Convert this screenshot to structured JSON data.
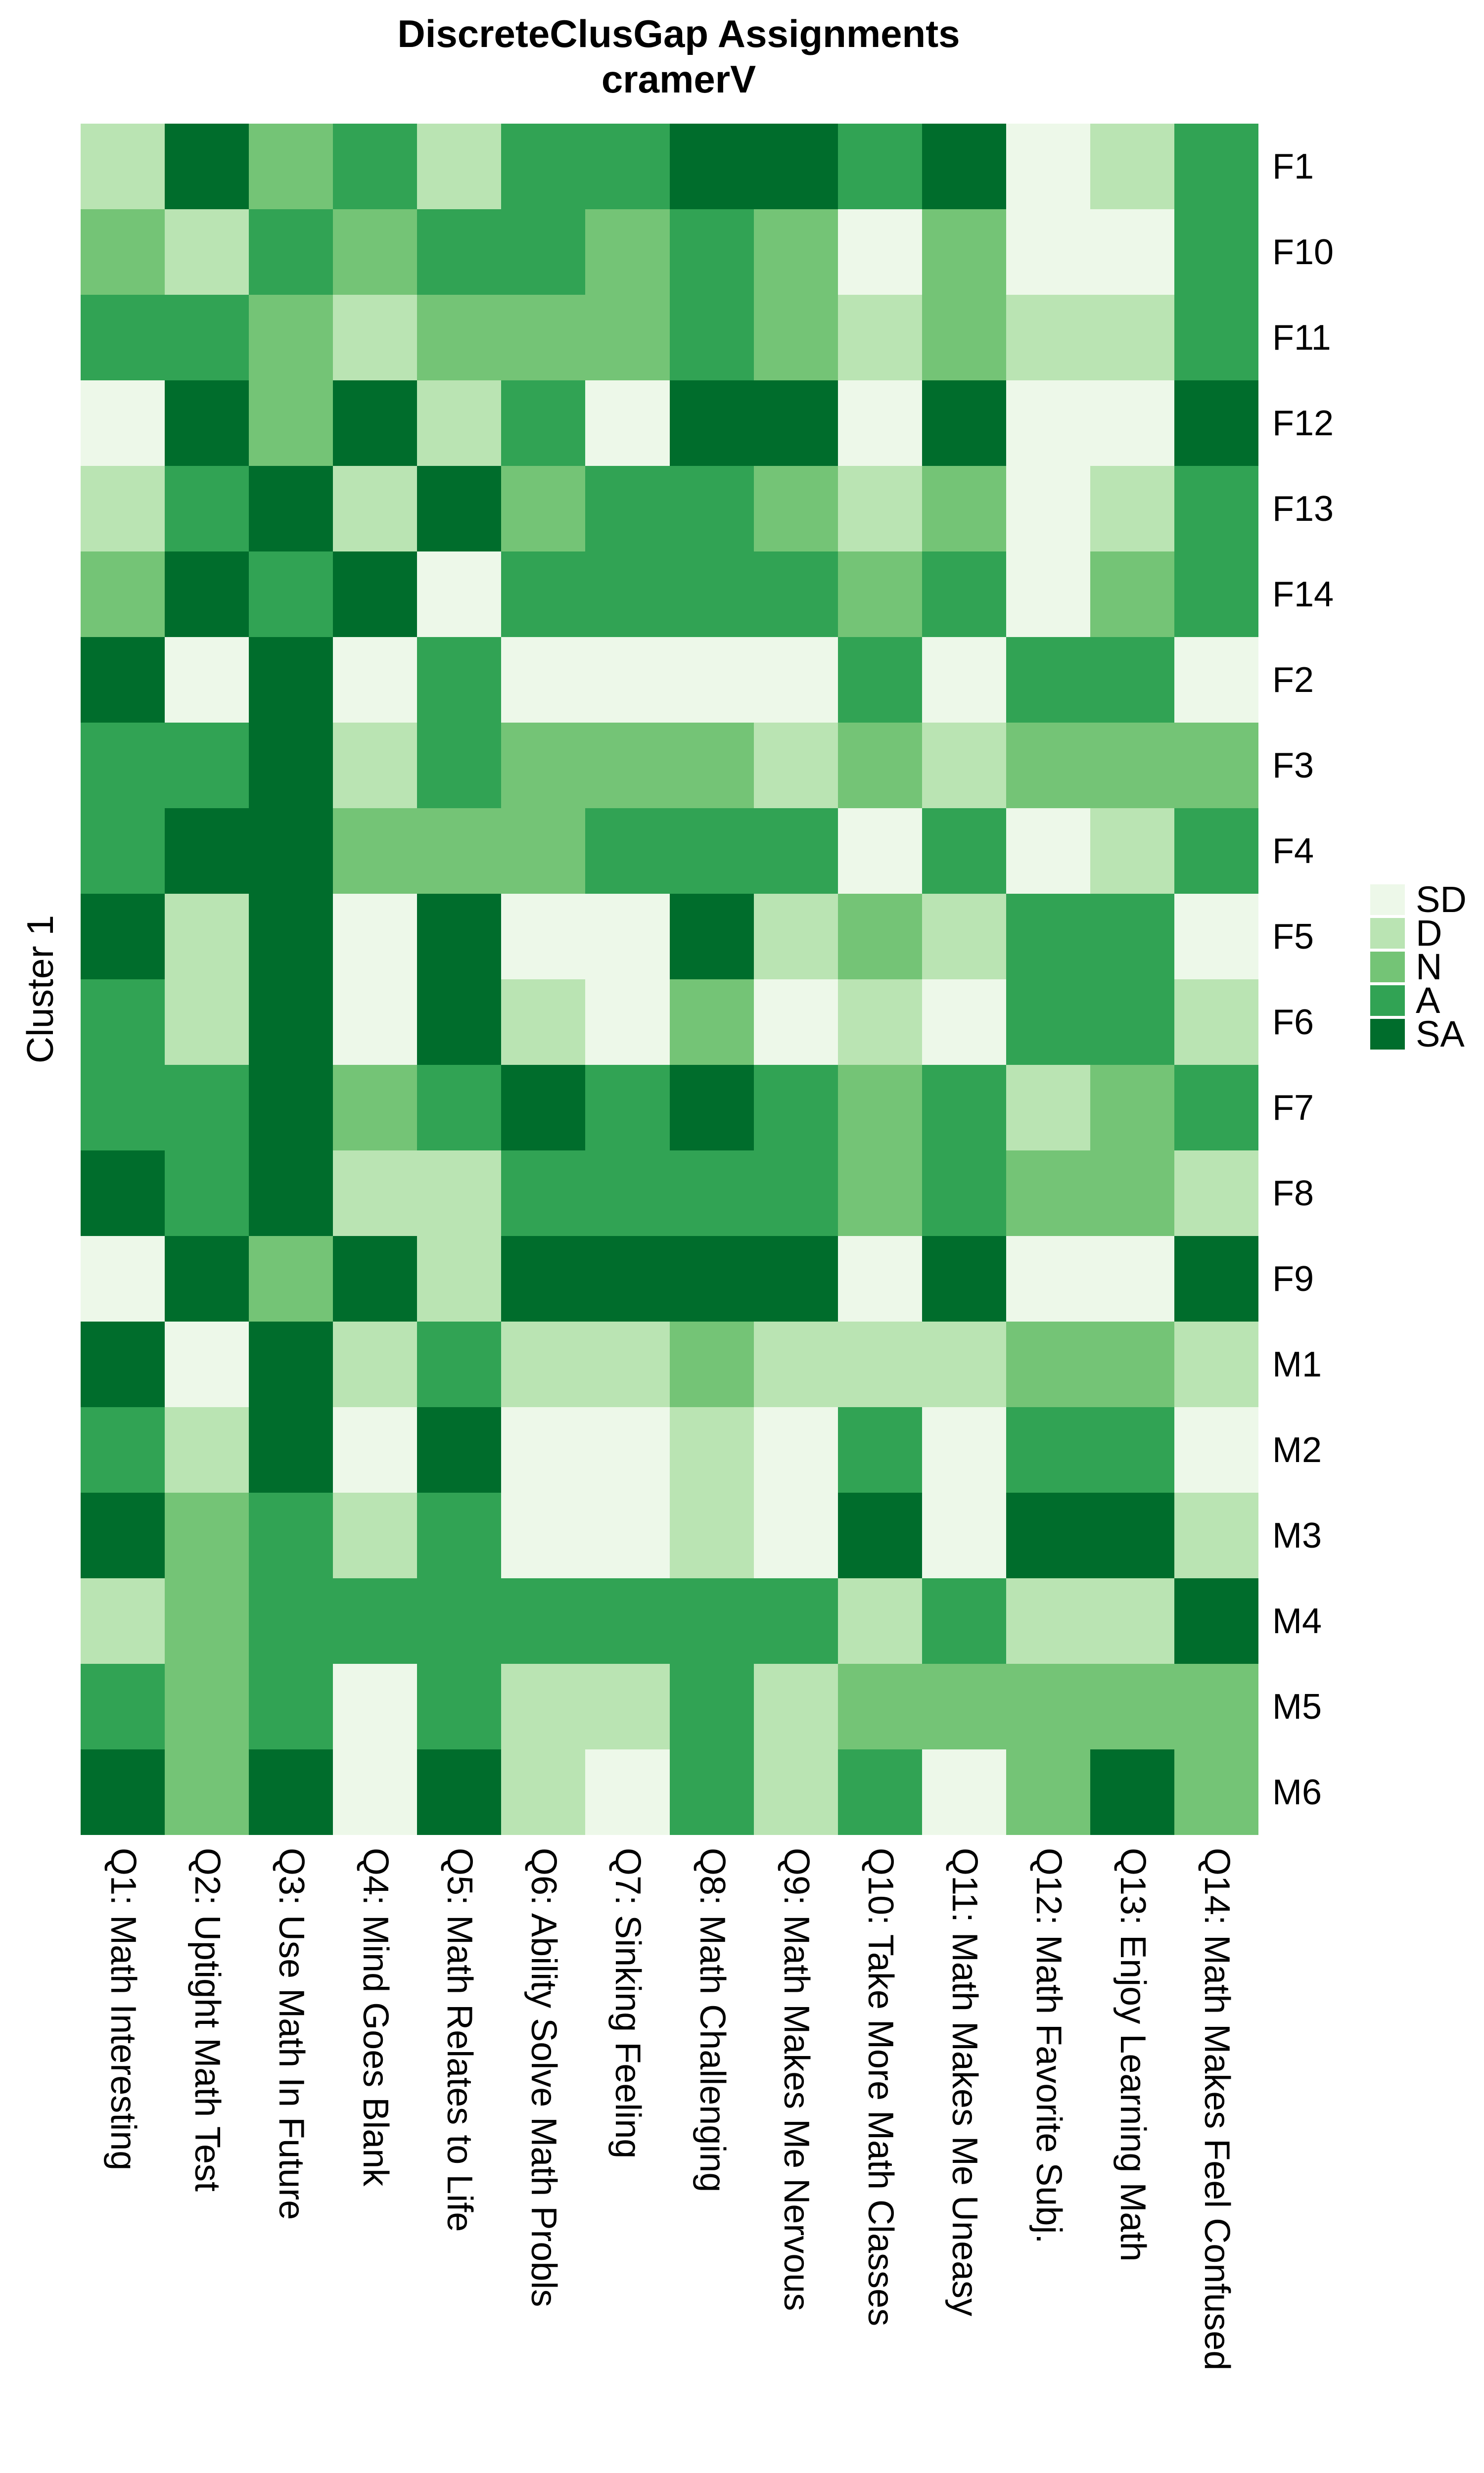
{
  "title": {
    "line1": "DiscreteClusGap Assignments",
    "line2": "cramerV"
  },
  "y_axis_label": "Cluster 1",
  "chart_data": {
    "type": "heatmap",
    "title": "DiscreteClusGap Assignments",
    "subtitle": "cramerV",
    "ylabel": "Cluster 1",
    "xlabel": "",
    "grid": false,
    "legend_position": "right",
    "x_categories": [
      "Q1: Math Interesting",
      "Q2: Uptight Math Test",
      "Q3: Use Math In Future",
      "Q4: Mind Goes Blank",
      "Q5: Math Relates to Life",
      "Q6: Ability Solve Math Probls",
      "Q7: Sinking Feeling",
      "Q8: Math Challenging",
      "Q9: Math Makes Me Nervous",
      "Q10: Take More Math Classes",
      "Q11: Math Makes Me Uneasy",
      "Q12: Math Favorite Subj.",
      "Q13: Enjoy Learning Math",
      "Q14: Math Makes Feel Confused"
    ],
    "y_categories": [
      "F1",
      "F10",
      "F11",
      "F12",
      "F13",
      "F14",
      "F2",
      "F3",
      "F4",
      "F5",
      "F6",
      "F7",
      "F8",
      "F9",
      "M1",
      "M2",
      "M3",
      "M4",
      "M5",
      "M6"
    ],
    "legend_entries": [
      {
        "label": "SD",
        "color": "#edf8e9"
      },
      {
        "label": "D",
        "color": "#bae4b3"
      },
      {
        "label": "N",
        "color": "#74c476"
      },
      {
        "label": "A",
        "color": "#31a354"
      },
      {
        "label": "SA",
        "color": "#006d2c"
      }
    ],
    "color_map": {
      "SD": "#edf8e9",
      "D": "#bae4b3",
      "N": "#74c476",
      "A": "#31a354",
      "SA": "#006d2c"
    },
    "values": [
      [
        "D",
        "SA",
        "N",
        "A",
        "D",
        "A",
        "A",
        "SA",
        "SA",
        "A",
        "SA",
        "SD",
        "D",
        "A"
      ],
      [
        "N",
        "D",
        "A",
        "N",
        "A",
        "A",
        "N",
        "A",
        "N",
        "SD",
        "N",
        "SD",
        "SD",
        "A"
      ],
      [
        "A",
        "A",
        "N",
        "D",
        "N",
        "N",
        "N",
        "A",
        "N",
        "D",
        "N",
        "D",
        "D",
        "A"
      ],
      [
        "SD",
        "SA",
        "N",
        "SA",
        "D",
        "A",
        "SD",
        "SA",
        "SA",
        "SD",
        "SA",
        "SD",
        "SD",
        "SA"
      ],
      [
        "D",
        "A",
        "SA",
        "D",
        "SA",
        "N",
        "A",
        "A",
        "N",
        "D",
        "N",
        "SD",
        "D",
        "A"
      ],
      [
        "N",
        "SA",
        "A",
        "SA",
        "SD",
        "A",
        "A",
        "A",
        "A",
        "N",
        "A",
        "SD",
        "N",
        "A"
      ],
      [
        "SA",
        "SD",
        "SA",
        "SD",
        "A",
        "SD",
        "SD",
        "SD",
        "SD",
        "A",
        "SD",
        "A",
        "A",
        "SD"
      ],
      [
        "A",
        "A",
        "SA",
        "D",
        "A",
        "N",
        "N",
        "N",
        "D",
        "N",
        "D",
        "N",
        "N",
        "N"
      ],
      [
        "A",
        "SA",
        "SA",
        "N",
        "N",
        "N",
        "A",
        "A",
        "A",
        "SD",
        "A",
        "SD",
        "D",
        "A"
      ],
      [
        "SA",
        "D",
        "SA",
        "SD",
        "SA",
        "SD",
        "SD",
        "SA",
        "D",
        "N",
        "D",
        "A",
        "A",
        "SD"
      ],
      [
        "A",
        "D",
        "SA",
        "SD",
        "SA",
        "D",
        "SD",
        "N",
        "SD",
        "D",
        "SD",
        "A",
        "A",
        "D"
      ],
      [
        "A",
        "A",
        "SA",
        "N",
        "A",
        "SA",
        "A",
        "SA",
        "A",
        "N",
        "A",
        "D",
        "N",
        "A"
      ],
      [
        "SA",
        "A",
        "SA",
        "D",
        "D",
        "A",
        "A",
        "A",
        "A",
        "N",
        "A",
        "N",
        "N",
        "D"
      ],
      [
        "SD",
        "SA",
        "N",
        "SA",
        "D",
        "SA",
        "SA",
        "SA",
        "SA",
        "SD",
        "SA",
        "SD",
        "SD",
        "SA"
      ],
      [
        "SA",
        "SD",
        "SA",
        "D",
        "A",
        "D",
        "D",
        "N",
        "D",
        "D",
        "D",
        "N",
        "N",
        "D"
      ],
      [
        "A",
        "D",
        "SA",
        "SD",
        "SA",
        "SD",
        "SD",
        "D",
        "SD",
        "A",
        "SD",
        "A",
        "A",
        "SD"
      ],
      [
        "SA",
        "N",
        "A",
        "D",
        "A",
        "SD",
        "SD",
        "D",
        "SD",
        "SA",
        "SD",
        "SA",
        "SA",
        "D"
      ],
      [
        "D",
        "N",
        "A",
        "A",
        "A",
        "A",
        "A",
        "A",
        "A",
        "D",
        "A",
        "D",
        "D",
        "SA"
      ],
      [
        "A",
        "N",
        "A",
        "SD",
        "A",
        "D",
        "D",
        "A",
        "D",
        "N",
        "N",
        "N",
        "N",
        "N"
      ],
      [
        "SA",
        "N",
        "SA",
        "SD",
        "SA",
        "D",
        "SD",
        "A",
        "D",
        "A",
        "SD",
        "N",
        "SA",
        "N"
      ]
    ]
  }
}
